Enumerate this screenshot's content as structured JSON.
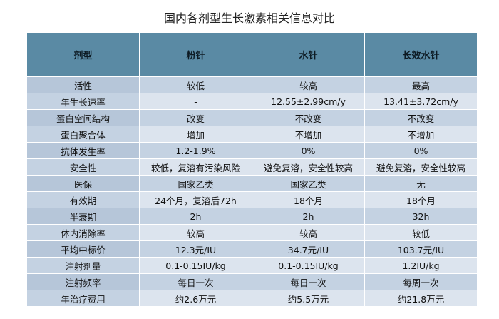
{
  "title": "国内各剂型生长激素相关信息对比",
  "table": {
    "headers": [
      "剂型",
      "粉针",
      "水针",
      "长效水针"
    ],
    "rows": [
      [
        "活性",
        "较低",
        "较高",
        "最高"
      ],
      [
        "年生长速率",
        "-",
        "12.55±2.99cm/y",
        "13.41±3.72cm/y"
      ],
      [
        "蛋白空间结构",
        "改变",
        "不改变",
        "不改变"
      ],
      [
        "蛋白聚合体",
        "增加",
        "不增加",
        "不增加"
      ],
      [
        "抗体发生率",
        "1.2-1.9%",
        "0%",
        "0%"
      ],
      [
        "安全性",
        "较低，复溶有污染风险",
        "避免复溶，安全性较高",
        "避免复溶，安全性较高"
      ],
      [
        "医保",
        "国家乙类",
        "国家乙类",
        "无"
      ],
      [
        "有效期",
        "24个月，复溶后72h",
        "18个月",
        "18个月"
      ],
      [
        "半衰期",
        "2h",
        "2h",
        "32h"
      ],
      [
        "体内消除率",
        "较高",
        "较高",
        "较低"
      ],
      [
        "平均中标价",
        "12.3元/IU",
        "34.7元/IU",
        "103.7元/IU"
      ],
      [
        "注射剂量",
        "0.1-0.15IU/kg",
        "0.1-0.15IU/kg",
        "1.2IU/kg"
      ],
      [
        "注射频率",
        "每日一次",
        "每日一次",
        "每周一次"
      ],
      [
        "年治疗费用",
        "约2.6万元",
        "约5.5万元",
        "约21.8万元"
      ]
    ]
  }
}
